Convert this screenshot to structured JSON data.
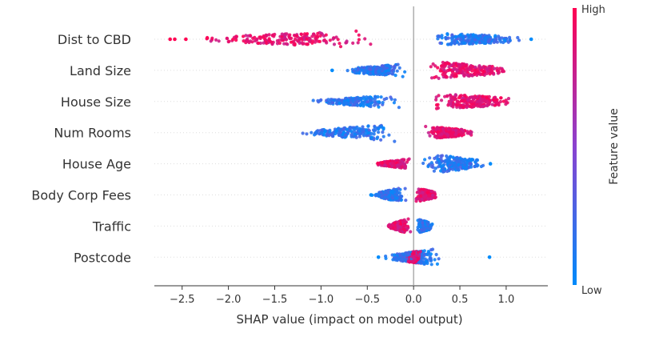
{
  "chart_data": {
    "type": "scatter",
    "title": "",
    "xlabel": "SHAP value (impact on model output)",
    "ylabel": "",
    "xlim": [
      -2.8,
      1.45
    ],
    "xticks": [
      -2.5,
      -2.0,
      -1.5,
      -1.0,
      -0.5,
      0.0,
      0.5,
      1.0
    ],
    "xtick_labels": [
      "−2.5",
      "−2.0",
      "−1.5",
      "−1.0",
      "−0.5",
      "0.0",
      "0.5",
      "1.0"
    ],
    "zero_line": 0,
    "colorbar": {
      "title": "Feature value",
      "high_label": "High",
      "low_label": "Low",
      "low_color": "#008bfb",
      "high_color": "#ff0052"
    },
    "features": [
      {
        "name": "Dist to CBD",
        "min": -2.63,
        "max": 1.27,
        "low_value_range": [
          0.1,
          1.25
        ],
        "high_value_range": [
          -2.55,
          -0.2
        ],
        "outliers": [
          -2.63,
          -2.58,
          -2.46,
          1.27
        ]
      },
      {
        "name": "Land Size",
        "min": -0.88,
        "max": 1.12,
        "low_value_range": [
          -0.75,
          -0.05
        ],
        "high_value_range": [
          0.0,
          1.12
        ],
        "outliers": [
          -0.88
        ]
      },
      {
        "name": "House Size",
        "min": -1.15,
        "max": 1.22,
        "low_value_range": [
          -1.15,
          -0.1
        ],
        "high_value_range": [
          0.1,
          1.22
        ],
        "outliers": []
      },
      {
        "name": "Num Rooms",
        "min": -1.28,
        "max": 0.68,
        "low_value_range": [
          -1.28,
          -0.1
        ],
        "high_value_range": [
          0.1,
          0.68
        ],
        "outliers": []
      },
      {
        "name": "House Age",
        "min": -0.42,
        "max": 0.83,
        "low_value_range": [
          0.05,
          0.83
        ],
        "high_value_range": [
          -0.42,
          -0.02
        ],
        "outliers": [
          0.83
        ]
      },
      {
        "name": "Body Corp Fees",
        "min": -0.46,
        "max": 0.27,
        "low_value_range": [
          -0.46,
          -0.05
        ],
        "high_value_range": [
          0.0,
          0.27
        ],
        "outliers": [
          -0.46
        ]
      },
      {
        "name": "Traffic",
        "min": -0.3,
        "max": 0.22,
        "low_value_range": [
          0.02,
          0.22
        ],
        "high_value_range": [
          -0.3,
          -0.02
        ],
        "outliers": []
      },
      {
        "name": "Postcode",
        "min": -0.38,
        "max": 0.82,
        "low_value_range": [
          -0.38,
          0.35
        ],
        "high_value_range": [
          -0.1,
          0.1
        ],
        "outliers": [
          -0.38,
          0.82
        ]
      }
    ]
  }
}
